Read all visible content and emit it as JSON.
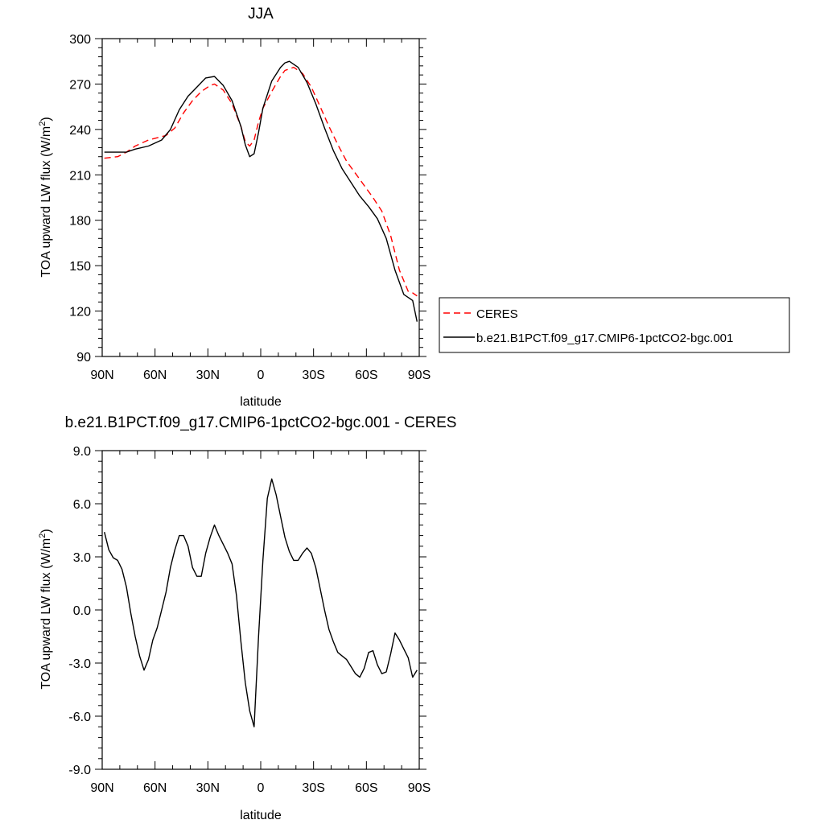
{
  "chart_data": [
    {
      "type": "line",
      "title": "JJA",
      "xlabel": "latitude",
      "ylabel": "TOA upward LW flux (W/m",
      "ylabel_sup": "2",
      "ylabel_close": ")",
      "xlim": [
        90,
        -90
      ],
      "ylim": [
        90,
        300
      ],
      "xticks": [
        90,
        60,
        30,
        0,
        -30,
        -60,
        -90
      ],
      "xtick_labels": [
        "90N",
        "60N",
        "30N",
        "0",
        "30S",
        "60S",
        "90S"
      ],
      "yticks": [
        90,
        120,
        150,
        180,
        210,
        240,
        270,
        300
      ],
      "ytick_labels": [
        "90",
        "120",
        "150",
        "180",
        "210",
        "240",
        "270",
        "300"
      ],
      "grid": false,
      "legend": "right",
      "series": [
        {
          "name": "CERES",
          "color": "#ff0000",
          "style": "dashed",
          "x": [
            88.75,
            81.25,
            76.25,
            71.25,
            63.75,
            53.75,
            48.75,
            43.75,
            38.75,
            33.75,
            28.75,
            26.25,
            21.25,
            16.25,
            11.25,
            8.75,
            6.25,
            3.75,
            1.25,
            -1.25,
            -6.25,
            -11.25,
            -13.75,
            -18.75,
            -23.75,
            -28.75,
            -33.75,
            -38.75,
            -43.75,
            -48.75,
            -53.75,
            -58.75,
            -63.75,
            -68.75,
            -73.75,
            -78.75,
            -83.75,
            -86.25,
            -88.75
          ],
          "y": [
            221,
            222,
            225,
            229,
            233,
            236,
            241,
            251,
            259,
            265,
            269,
            270,
            266,
            257,
            242,
            232,
            229,
            233,
            245,
            254,
            265,
            275,
            279,
            281,
            277,
            268,
            255,
            242,
            230,
            219,
            211,
            203,
            195,
            186,
            170,
            147,
            133,
            132,
            130
          ]
        },
        {
          "name": "b.e21.B1PCT.f09_g17.CMIP6-1pctCO2-bgc.001",
          "color": "#000000",
          "style": "solid",
          "x": [
            88.75,
            81.25,
            76.25,
            71.25,
            63.75,
            56.25,
            51.25,
            46.25,
            41.25,
            36.25,
            31.25,
            26.25,
            21.25,
            16.25,
            11.25,
            8.75,
            6.25,
            3.75,
            1.25,
            -1.25,
            -6.25,
            -11.25,
            -13.75,
            -16.25,
            -21.25,
            -26.25,
            -31.25,
            -36.25,
            -41.25,
            -46.25,
            -51.25,
            -56.25,
            -61.25,
            -66.25,
            -71.25,
            -76.25,
            -81.25,
            -86.25,
            -88.75
          ],
          "y": [
            225,
            225,
            225,
            227,
            229,
            233,
            240,
            253,
            262,
            268,
            274,
            275,
            269,
            259,
            242,
            230,
            222,
            224,
            238,
            254,
            272,
            281,
            284,
            285,
            281,
            271,
            257,
            241,
            226,
            214,
            205,
            196,
            189,
            181,
            168,
            147,
            131,
            127,
            113
          ]
        }
      ]
    },
    {
      "type": "line",
      "title": "b.e21.B1PCT.f09_g17.CMIP6-1pctCO2-bgc.001 - CERES",
      "xlabel": "latitude",
      "ylabel": "TOA upward LW flux (W/m",
      "ylabel_sup": "2",
      "ylabel_close": ")",
      "xlim": [
        90,
        -90
      ],
      "ylim": [
        -9,
        9
      ],
      "xticks": [
        90,
        60,
        30,
        0,
        -30,
        -60,
        -90
      ],
      "xtick_labels": [
        "90N",
        "60N",
        "30N",
        "0",
        "30S",
        "60S",
        "90S"
      ],
      "yticks": [
        -9,
        -6,
        -3,
        0,
        3,
        6,
        9
      ],
      "ytick_labels": [
        "-9.0",
        "-6.0",
        "-3.0",
        "0.0",
        "3.0",
        "6.0",
        "9.0"
      ],
      "grid": false,
      "series": [
        {
          "color": "#000000",
          "style": "solid",
          "x": [
            88.75,
            86.25,
            83.75,
            81.25,
            78.75,
            76.25,
            73.75,
            71.25,
            68.75,
            66.25,
            63.75,
            61.25,
            58.75,
            56.25,
            53.75,
            51.25,
            48.75,
            46.25,
            43.75,
            41.25,
            38.75,
            36.25,
            33.75,
            31.25,
            28.75,
            26.25,
            23.75,
            21.25,
            18.75,
            16.25,
            13.75,
            11.25,
            8.75,
            6.25,
            3.75,
            1.25,
            -1.25,
            -3.75,
            -6.25,
            -8.75,
            -11.25,
            -13.75,
            -16.25,
            -18.75,
            -21.25,
            -23.75,
            -26.25,
            -28.75,
            -31.25,
            -33.75,
            -36.25,
            -38.75,
            -41.25,
            -43.75,
            -46.25,
            -48.75,
            -51.25,
            -53.75,
            -56.25,
            -58.75,
            -61.25,
            -63.75,
            -66.25,
            -68.75,
            -71.25,
            -73.75,
            -76.25,
            -78.75,
            -81.25,
            -83.75,
            -86.25,
            -88.75
          ],
          "y": [
            4.4,
            3.4,
            2.95,
            2.8,
            2.3,
            1.3,
            -0.2,
            -1.5,
            -2.6,
            -3.4,
            -2.8,
            -1.7,
            -1.0,
            0.0,
            1.0,
            2.4,
            3.4,
            4.2,
            4.2,
            3.6,
            2.4,
            1.9,
            1.9,
            3.2,
            4.1,
            4.8,
            4.2,
            3.7,
            3.2,
            2.6,
            0.8,
            -1.8,
            -4.1,
            -5.7,
            -6.6,
            -1.5,
            2.8,
            6.3,
            7.4,
            6.5,
            5.3,
            4.1,
            3.3,
            2.8,
            2.8,
            3.2,
            3.5,
            3.2,
            2.4,
            1.2,
            0.0,
            -1.1,
            -1.8,
            -2.4,
            -2.6,
            -2.8,
            -3.2,
            -3.6,
            -3.8,
            -3.3,
            -2.4,
            -2.3,
            -3.1,
            -3.6,
            -3.5,
            -2.5,
            -1.3,
            -1.7,
            -2.2,
            -2.7,
            -3.8,
            -3.4
          ]
        }
      ]
    }
  ]
}
